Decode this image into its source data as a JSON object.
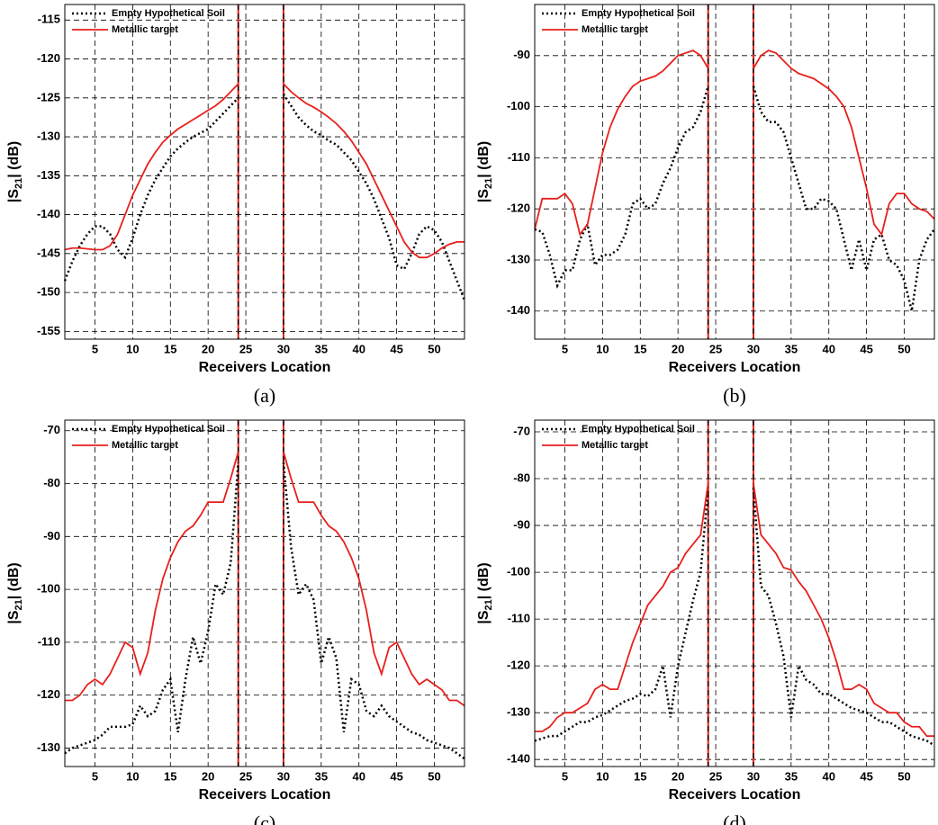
{
  "chart_data": [
    {
      "type": "line",
      "panel_label": "(a)",
      "xlabel": "Receivers Location",
      "ylabel": [
        "|S",
        "21",
        "| (dB)"
      ],
      "x": [
        1,
        2,
        3,
        4,
        5,
        6,
        7,
        8,
        9,
        10,
        11,
        12,
        13,
        14,
        15,
        16,
        17,
        18,
        19,
        20,
        21,
        22,
        23,
        24,
        25,
        26,
        27,
        28,
        29,
        30,
        31,
        32,
        33,
        34,
        35,
        36,
        37,
        38,
        39,
        40,
        41,
        42,
        43,
        44,
        45,
        46,
        47,
        48,
        49,
        50,
        51,
        52,
        53,
        54
      ],
      "xlim": [
        1,
        54
      ],
      "xticks": [
        5,
        10,
        15,
        20,
        25,
        30,
        35,
        40,
        45,
        50
      ],
      "ylim": [
        -156,
        -113
      ],
      "yticks": [
        -155,
        -150,
        -145,
        -140,
        -135,
        -130,
        -125,
        -120,
        -115
      ],
      "grid": true,
      "legend": "upper left",
      "markers": [
        24,
        30
      ],
      "series": [
        {
          "name": "Empty Hypothetical Soil",
          "color": "#000000",
          "style": "dotted",
          "values": [
            -148.5,
            -146,
            -144,
            -142.5,
            -141.5,
            -141.5,
            -142.5,
            -144.5,
            -145.5,
            -143,
            -140,
            -137.5,
            -135.5,
            -134,
            -132.5,
            -131.5,
            -130.7,
            -130,
            -129.5,
            -129,
            -128,
            -127,
            -126,
            -125,
            null,
            null,
            null,
            null,
            null,
            -124.5,
            -126,
            -127.5,
            -128.5,
            -129.3,
            -129.8,
            -130.5,
            -131,
            -132,
            -133,
            -134.5,
            -136,
            -138,
            -140.5,
            -143,
            -146.5,
            -147,
            -145,
            -142.5,
            -141.5,
            -142,
            -143.5,
            -146,
            -148.5,
            -151
          ]
        },
        {
          "name": "Metallic target",
          "color": "#e8201c",
          "style": "solid",
          "values": [
            -144.5,
            -144.3,
            -144.3,
            -144.4,
            -144.5,
            -144.5,
            -144,
            -142.5,
            -140,
            -137.5,
            -135.5,
            -133.5,
            -132,
            -130.7,
            -129.8,
            -129,
            -128.4,
            -127.8,
            -127.2,
            -126.6,
            -126,
            -125.2,
            -124.2,
            -123.2,
            null,
            null,
            null,
            null,
            null,
            -123.2,
            -124.2,
            -125,
            -125.7,
            -126.2,
            -126.8,
            -127.5,
            -128.3,
            -129.3,
            -130.5,
            -132,
            -133.5,
            -135.5,
            -137.5,
            -139.5,
            -141.5,
            -143.5,
            -144.8,
            -145.5,
            -145.5,
            -145,
            -144.3,
            -143.8,
            -143.5,
            -143.5
          ]
        }
      ]
    },
    {
      "type": "line",
      "panel_label": "(b)",
      "xlabel": "Receivers Location",
      "ylabel": [
        "|S",
        "21",
        "| (dB)"
      ],
      "x": [
        1,
        2,
        3,
        4,
        5,
        6,
        7,
        8,
        9,
        10,
        11,
        12,
        13,
        14,
        15,
        16,
        17,
        18,
        19,
        20,
        21,
        22,
        23,
        24,
        25,
        26,
        27,
        28,
        29,
        30,
        31,
        32,
        33,
        34,
        35,
        36,
        37,
        38,
        39,
        40,
        41,
        42,
        43,
        44,
        45,
        46,
        47,
        48,
        49,
        50,
        51,
        52,
        53,
        54
      ],
      "xlim": [
        1,
        54
      ],
      "xticks": [
        5,
        10,
        15,
        20,
        25,
        30,
        35,
        40,
        45,
        50
      ],
      "ylim": [
        -145.5,
        -80
      ],
      "yticks": [
        -140,
        -130,
        -120,
        -110,
        -100,
        -90
      ],
      "grid": true,
      "legend": "upper left",
      "markers": [
        24,
        30
      ],
      "series": [
        {
          "name": "Empty Hypothetical Soil",
          "color": "#000000",
          "style": "dotted",
          "values": [
            -124,
            -124.5,
            -129,
            -135,
            -132,
            -132,
            -126,
            -123,
            -131,
            -129,
            -129,
            -128,
            -125,
            -119,
            -118,
            -120,
            -119,
            -115,
            -112,
            -108,
            -105,
            -104,
            -101,
            -96,
            null,
            null,
            null,
            null,
            null,
            -96,
            -101,
            -103,
            -103,
            -105,
            -110,
            -115,
            -120,
            -120,
            -118,
            -118.5,
            -120,
            -126,
            -132,
            -126,
            -132,
            -126,
            -125,
            -130,
            -131,
            -134,
            -140,
            -130,
            -126,
            -124
          ]
        },
        {
          "name": "Metallic target",
          "color": "#e8201c",
          "style": "solid",
          "values": [
            -124,
            -118,
            -118,
            -118,
            -117,
            -119,
            -125,
            -123,
            -116,
            -109,
            -104,
            -100.5,
            -98,
            -96,
            -95,
            -94.5,
            -94,
            -93,
            -91.5,
            -90,
            -89.5,
            -89,
            -90,
            -92.5,
            null,
            null,
            null,
            null,
            null,
            -92.5,
            -90,
            -89,
            -89.5,
            -91,
            -92.5,
            -93.5,
            -94,
            -94.5,
            -95.5,
            -96.5,
            -98,
            -100,
            -104,
            -110,
            -116,
            -123,
            -125,
            -119,
            -117,
            -117,
            -119,
            -120,
            -120.5,
            -122
          ]
        }
      ]
    },
    {
      "type": "line",
      "panel_label": "(c)",
      "xlabel": "Receivers Location",
      "ylabel": [
        "|S",
        "21",
        "| (dB)"
      ],
      "x": [
        1,
        2,
        3,
        4,
        5,
        6,
        7,
        8,
        9,
        10,
        11,
        12,
        13,
        14,
        15,
        16,
        17,
        18,
        19,
        20,
        21,
        22,
        23,
        24,
        25,
        26,
        27,
        28,
        29,
        30,
        31,
        32,
        33,
        34,
        35,
        36,
        37,
        38,
        39,
        40,
        41,
        42,
        43,
        44,
        45,
        46,
        47,
        48,
        49,
        50,
        51,
        52,
        53,
        54
      ],
      "xlim": [
        1,
        54
      ],
      "xticks": [
        5,
        10,
        15,
        20,
        25,
        30,
        35,
        40,
        45,
        50
      ],
      "ylim": [
        -133.5,
        -68
      ],
      "yticks": [
        -130,
        -120,
        -110,
        -100,
        -90,
        -80,
        -70
      ],
      "grid": true,
      "legend": "upper left",
      "markers": [
        24,
        30
      ],
      "series": [
        {
          "name": "Empty Hypothetical Soil",
          "color": "#000000",
          "style": "dotted",
          "values": [
            -131,
            -130,
            -129.5,
            -129,
            -128.5,
            -127.5,
            -126,
            -126,
            -126,
            -125.5,
            -122,
            -124,
            -123,
            -119,
            -117,
            -127,
            -117,
            -109,
            -114,
            -108,
            -99,
            -101,
            -95,
            -76,
            null,
            null,
            null,
            null,
            null,
            -76,
            -92,
            -101,
            -99,
            -102,
            -114,
            -109,
            -113,
            -127,
            -117,
            -118,
            -123,
            -124,
            -122,
            -124,
            -125,
            -126,
            -127,
            -127.5,
            -128.5,
            -129,
            -129.5,
            -130,
            -131,
            -132
          ]
        },
        {
          "name": "Metallic target",
          "color": "#e8201c",
          "style": "solid",
          "values": [
            -121,
            -121,
            -120,
            -118,
            -117,
            -118,
            -116,
            -113,
            -110,
            -111,
            -116,
            -112,
            -104,
            -98,
            -94,
            -91,
            -89,
            -88,
            -86,
            -83.5,
            -83.5,
            -83.5,
            -79,
            -74,
            null,
            null,
            null,
            null,
            null,
            -74,
            -79,
            -83.5,
            -83.5,
            -83.5,
            -86,
            -88,
            -89,
            -91,
            -94,
            -98,
            -104,
            -112,
            -116,
            -111,
            -110,
            -113,
            -116,
            -118,
            -117,
            -118,
            -119,
            -121,
            -121,
            -122
          ]
        }
      ]
    },
    {
      "type": "line",
      "panel_label": "(d)",
      "xlabel": "Receivers Location",
      "ylabel": [
        "|S",
        "21",
        "| (dB)"
      ],
      "x": [
        1,
        2,
        3,
        4,
        5,
        6,
        7,
        8,
        9,
        10,
        11,
        12,
        13,
        14,
        15,
        16,
        17,
        18,
        19,
        20,
        21,
        22,
        23,
        24,
        25,
        26,
        27,
        28,
        29,
        30,
        31,
        32,
        33,
        34,
        35,
        36,
        37,
        38,
        39,
        40,
        41,
        42,
        43,
        44,
        45,
        46,
        47,
        48,
        49,
        50,
        51,
        52,
        53,
        54
      ],
      "xlim": [
        1,
        54
      ],
      "xticks": [
        5,
        10,
        15,
        20,
        25,
        30,
        35,
        40,
        45,
        50
      ],
      "ylim": [
        -141.5,
        -67.5
      ],
      "yticks": [
        -140,
        -130,
        -120,
        -110,
        -100,
        -90,
        -80,
        -70
      ],
      "grid": true,
      "legend": "upper left",
      "markers": [
        24,
        30
      ],
      "series": [
        {
          "name": "Empty Hypothetical Soil",
          "color": "#000000",
          "style": "dotted",
          "values": [
            -136,
            -135.5,
            -135,
            -135,
            -134,
            -133,
            -132,
            -132,
            -131,
            -130.5,
            -129.5,
            -128.5,
            -127.5,
            -127,
            -126,
            -126.5,
            -125,
            -120,
            -131,
            -120,
            -113,
            -106,
            -100,
            -82,
            null,
            null,
            null,
            null,
            null,
            -82,
            -103,
            -105,
            -111,
            -118,
            -131,
            -120,
            -123,
            -124,
            -126,
            -126,
            -127,
            -128,
            -129,
            -129.5,
            -130,
            -131,
            -132,
            -132,
            -133,
            -134,
            -135,
            -135.5,
            -136,
            -137
          ]
        },
        {
          "name": "Metallic target",
          "color": "#e8201c",
          "style": "solid",
          "values": [
            -134,
            -134,
            -133,
            -131,
            -130,
            -130,
            -129,
            -128,
            -125,
            -124,
            -125,
            -125,
            -120,
            -115,
            -111,
            -107,
            -105,
            -103,
            -100,
            -99,
            -96,
            -94,
            -92,
            -81,
            null,
            null,
            null,
            null,
            null,
            -81,
            -92,
            -94,
            -96,
            -99,
            -99.5,
            -102,
            -104,
            -107,
            -110,
            -114,
            -119,
            -125,
            -125,
            -124,
            -125,
            -128,
            -129,
            -130,
            -130,
            -132,
            -133,
            -133,
            -135,
            -135
          ]
        }
      ]
    }
  ]
}
